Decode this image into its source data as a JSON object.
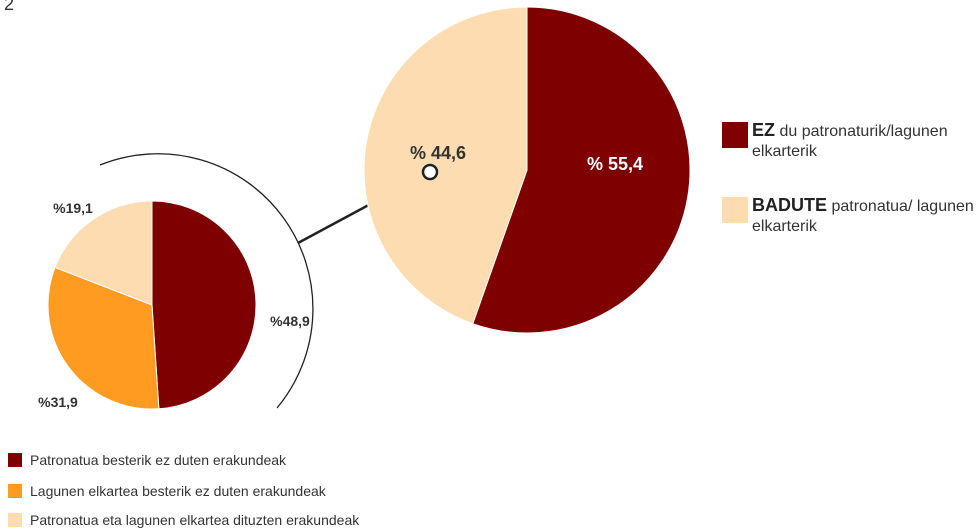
{
  "page_number": "2",
  "colors": {
    "dark_red": "#7f0000",
    "orange": "#ff9b21",
    "light_peach": "#fcdcb0",
    "line": "#222222"
  },
  "chart_data": [
    {
      "type": "pie",
      "categories": [
        "EZ du patronaturik/lagunen elkarterik",
        "BADUTE patronatua/ lagunen elkarterik"
      ],
      "values": [
        55.4,
        44.6
      ],
      "labels": [
        "% 55,4",
        "% 44,6"
      ],
      "colors": [
        "#7f0000",
        "#fcdcb0"
      ]
    },
    {
      "type": "pie",
      "categories": [
        "Patronatua besterik ez duten erakundeak",
        "Lagunen elkartea besterik ez duten erakundeak",
        "Patronatua eta lagunen elkartea dituzten erakundeak"
      ],
      "values": [
        48.9,
        31.9,
        19.1
      ],
      "labels": [
        "%48,9",
        "%31,9",
        "%19,1"
      ],
      "colors": [
        "#7f0000",
        "#ff9b21",
        "#fcdcb0"
      ]
    }
  ],
  "legend_right": [
    {
      "bold": "EZ",
      "rest": " du patronaturik/lagunen elkarterik",
      "color": "#7f0000"
    },
    {
      "bold": "BADUTE",
      "rest": " patronatua/ lagunen elkarterik",
      "color": "#fcdcb0"
    }
  ],
  "legend_bottom": [
    {
      "label": "Patronatua besterik ez duten erakundeak",
      "color": "#7f0000"
    },
    {
      "label": "Lagunen elkartea besterik ez duten erakundeak",
      "color": "#ff9b21"
    },
    {
      "label": "Patronatua eta lagunen elkartea dituzten erakundeak",
      "color": "#fcdcb0"
    }
  ]
}
